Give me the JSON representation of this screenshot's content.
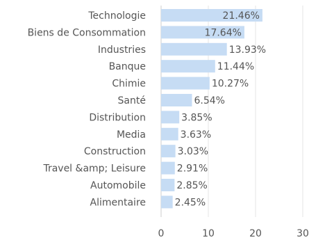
{
  "chart_data": {
    "type": "bar",
    "orientation": "horizontal",
    "categories": [
      "Technologie",
      "Biens de Consommation",
      "Industries",
      "Banque",
      "Chimie",
      "Santé",
      "Distribution",
      "Media",
      "Construction",
      "Travel &amp; Leisure",
      "Automobile",
      "Alimentaire"
    ],
    "values": [
      21.46,
      17.64,
      13.93,
      11.44,
      10.27,
      6.54,
      3.85,
      3.63,
      3.03,
      2.91,
      2.85,
      2.45
    ],
    "value_labels": [
      "21.46%",
      "17.64%",
      "13.93%",
      "11.44%",
      "10.27%",
      "6.54%",
      "3.85%",
      "3.63%",
      "3.03%",
      "2.91%",
      "2.85%",
      "2.45%"
    ],
    "xlim": [
      0,
      30
    ],
    "xticks": [
      "0",
      "10",
      "20",
      "30"
    ],
    "grid": "vertical",
    "colors": {
      "bar": "#c6dcf4",
      "grid": "#e4e4e4",
      "axis": "#cccccc",
      "text": "#555555"
    }
  }
}
